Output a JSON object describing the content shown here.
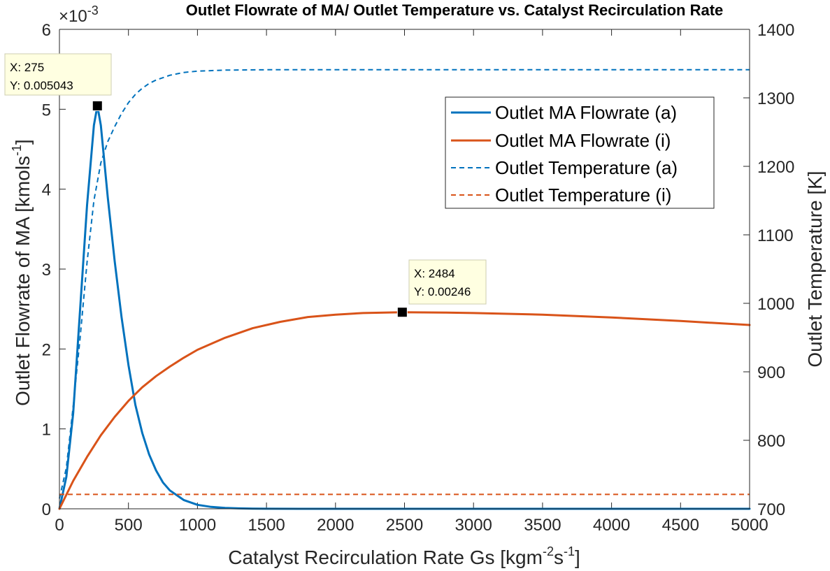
{
  "chart_data": {
    "type": "line",
    "title": "Outlet Flowrate of MA/ Outlet Temperature vs. Catalyst Recirculation Rate",
    "xlabel_main": "Catalyst Recirculation Rate Gs [kgm",
    "xlabel_sup1": "-2",
    "xlabel_mid": "s",
    "xlabel_sup2": "-1",
    "xlabel_end": "]",
    "ylabel_left_main": "Outlet Flowrate of MA [kmols",
    "ylabel_left_sup": "-1",
    "ylabel_left_end": "]",
    "ylabel_right": "Outlet Temperature [K]",
    "exponent_prefix": "×10",
    "exponent_power": "-3",
    "xlim": [
      0,
      5000
    ],
    "ylim_left": [
      0,
      0.006
    ],
    "ylim_right": [
      700,
      1400
    ],
    "x_ticks": [
      0,
      500,
      1000,
      1500,
      2000,
      2500,
      3000,
      3500,
      4000,
      4500,
      5000
    ],
    "x_tick_labels": [
      "0",
      "500",
      "1000",
      "1500",
      "2000",
      "2500",
      "3000",
      "3500",
      "4000",
      "4500",
      "5000"
    ],
    "y_left_ticks": [
      0,
      1,
      2,
      3,
      4,
      5,
      6
    ],
    "y_left_tick_labels": [
      "0",
      "1",
      "2",
      "3",
      "4",
      "5",
      "6"
    ],
    "y_right_ticks": [
      700,
      800,
      900,
      1000,
      1100,
      1200,
      1300,
      1400
    ],
    "y_right_tick_labels": [
      "700",
      "800",
      "900",
      "1000",
      "1100",
      "1200",
      "1300",
      "1400"
    ],
    "legend_position": "top-right",
    "grid": false,
    "series": [
      {
        "name": "Outlet MA Flowrate (a)",
        "axis": "left",
        "style": "solid",
        "color": "#0072BD",
        "x": [
          0,
          50,
          100,
          150,
          200,
          250,
          275,
          300,
          350,
          400,
          450,
          500,
          550,
          600,
          650,
          700,
          750,
          800,
          900,
          1000,
          1100,
          1200,
          1300,
          1400,
          1500,
          1750,
          2000,
          3000,
          4000,
          5000
        ],
        "y": [
          0,
          0.0004,
          0.0012,
          0.0025,
          0.0038,
          0.0048,
          0.005043,
          0.0048,
          0.0039,
          0.0031,
          0.0024,
          0.0018,
          0.0013,
          0.00095,
          0.00068,
          0.00048,
          0.00033,
          0.00023,
          0.00011,
          5e-05,
          2.4e-05,
          1.1e-05,
          5e-06,
          2e-06,
          1e-06,
          0,
          0,
          0,
          0,
          0
        ]
      },
      {
        "name": "Outlet MA Flowrate (i)",
        "axis": "left",
        "style": "solid",
        "color": "#D95319",
        "x": [
          0,
          100,
          200,
          300,
          400,
          500,
          600,
          700,
          800,
          900,
          1000,
          1200,
          1400,
          1600,
          1800,
          2000,
          2200,
          2484,
          2800,
          3000,
          3500,
          4000,
          4500,
          5000
        ],
        "y": [
          0,
          0.00035,
          0.00065,
          0.00092,
          0.00115,
          0.00135,
          0.00152,
          0.00166,
          0.00178,
          0.00189,
          0.00199,
          0.00214,
          0.00226,
          0.00234,
          0.0024,
          0.00243,
          0.00245,
          0.00246,
          0.002455,
          0.00245,
          0.00243,
          0.002395,
          0.00235,
          0.0023
        ]
      },
      {
        "name": "Outlet Temperature (a)",
        "axis": "right",
        "style": "dashed",
        "color": "#0072BD",
        "x": [
          0,
          50,
          100,
          150,
          200,
          250,
          300,
          350,
          400,
          450,
          500,
          550,
          600,
          650,
          700,
          800,
          900,
          1000,
          1200,
          1500,
          2000,
          3000,
          4000,
          5000
        ],
        "y": [
          715,
          760,
          850,
          950,
          1060,
          1150,
          1205,
          1236,
          1258,
          1277,
          1293,
          1305,
          1314,
          1321,
          1326,
          1333,
          1337,
          1339,
          1340.5,
          1341,
          1341,
          1341,
          1341,
          1341
        ]
      },
      {
        "name": "Outlet Temperature (i)",
        "axis": "right",
        "style": "dashed",
        "color": "#D95319",
        "x": [
          0,
          5000
        ],
        "y": [
          721,
          721
        ]
      }
    ],
    "datatips": [
      {
        "x": 275,
        "y": 0.005043,
        "line1": "X: 275",
        "line2": "Y: 0.005043"
      },
      {
        "x": 2484,
        "y": 0.00246,
        "line1": "X: 2484",
        "line2": "Y: 0.00246"
      }
    ]
  }
}
